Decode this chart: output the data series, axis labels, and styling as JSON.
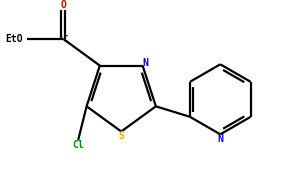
{
  "bg_color": "#ffffff",
  "line_color": "#000000",
  "N_color": "#0000cc",
  "S_color": "#ffa500",
  "O_color": "#cc0000",
  "Cl_color": "#008800",
  "lw": 1.6,
  "fs": 7.0,
  "xlim": [
    -1.7,
    2.3
  ],
  "ylim": [
    -1.1,
    1.2
  ]
}
